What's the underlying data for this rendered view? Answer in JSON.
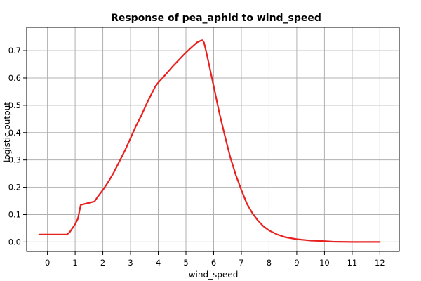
{
  "chart_data": {
    "type": "line",
    "title": "Response of pea_aphid to wind_speed",
    "xlabel": "wind_speed",
    "ylabel": "logistic output",
    "xlim": [
      -0.75,
      12.7
    ],
    "ylim": [
      -0.035,
      0.785
    ],
    "xticks": [
      0,
      1,
      2,
      3,
      4,
      5,
      6,
      7,
      8,
      9,
      10,
      11,
      12
    ],
    "yticks": [
      0.0,
      0.1,
      0.2,
      0.3,
      0.4,
      0.5,
      0.6,
      0.7
    ],
    "grid": true,
    "line_color": "#e8211f",
    "series": [
      {
        "x": [
          -0.3,
          0.0,
          0.3,
          0.7,
          0.8,
          0.9,
          1.0,
          1.1,
          1.15,
          1.2,
          1.3,
          1.5,
          1.7,
          1.8,
          2.0,
          2.2,
          2.4,
          2.6,
          2.8,
          3.0,
          3.2,
          3.4,
          3.6,
          3.8,
          3.9,
          4.0,
          4.2,
          4.5,
          4.8,
          5.0,
          5.2,
          5.4,
          5.55,
          5.6,
          5.65,
          5.7,
          5.8,
          6.0,
          6.2,
          6.4,
          6.6,
          6.8,
          7.0,
          7.2,
          7.4,
          7.6,
          7.8,
          8.0,
          8.3,
          8.6,
          9.0,
          9.5,
          10.0,
          10.3,
          11.0,
          12.0
        ],
        "y": [
          0.027,
          0.027,
          0.027,
          0.027,
          0.035,
          0.05,
          0.065,
          0.085,
          0.11,
          0.135,
          0.138,
          0.143,
          0.148,
          0.163,
          0.19,
          0.22,
          0.255,
          0.295,
          0.335,
          0.38,
          0.425,
          0.465,
          0.51,
          0.55,
          0.57,
          0.583,
          0.605,
          0.64,
          0.672,
          0.693,
          0.712,
          0.73,
          0.737,
          0.738,
          0.73,
          0.71,
          0.665,
          0.57,
          0.475,
          0.39,
          0.31,
          0.245,
          0.19,
          0.14,
          0.105,
          0.078,
          0.057,
          0.042,
          0.027,
          0.017,
          0.01,
          0.005,
          0.003,
          0.001,
          0.0,
          0.0
        ]
      }
    ]
  }
}
